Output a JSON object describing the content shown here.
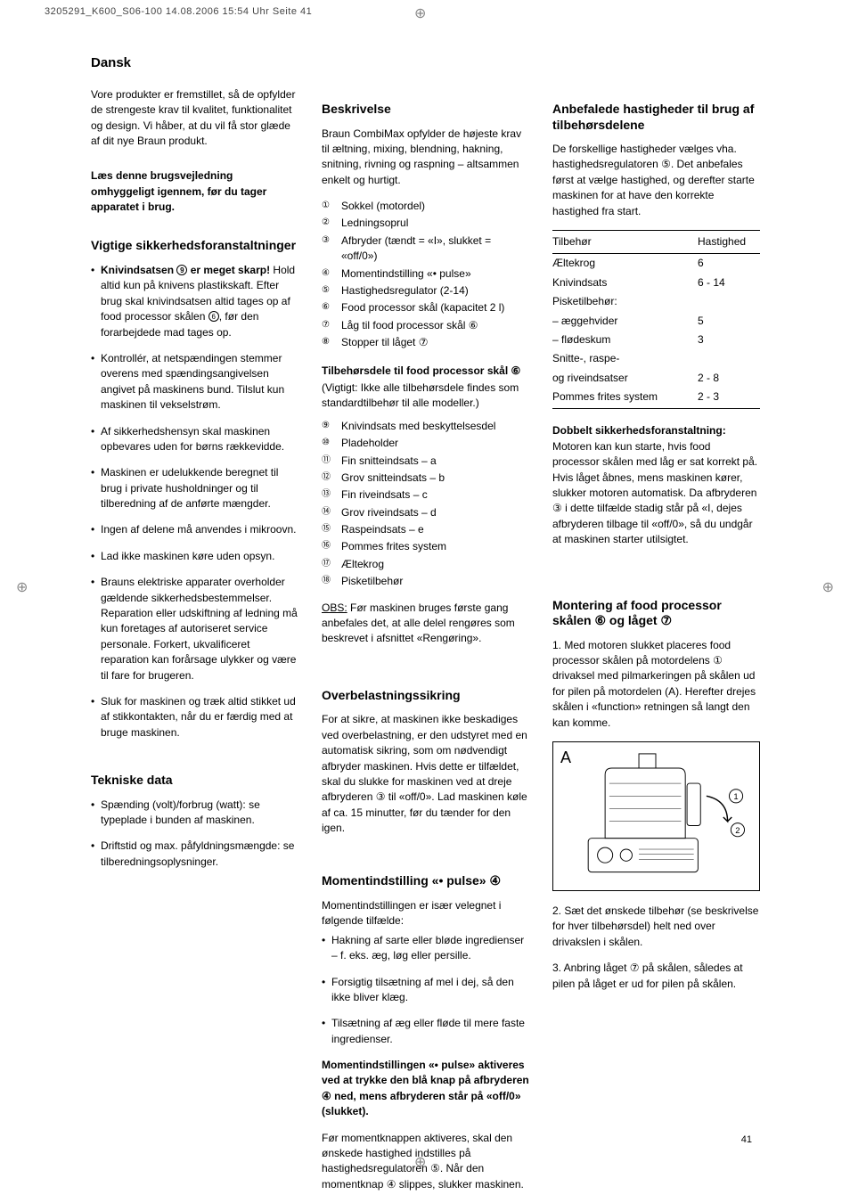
{
  "print_header": "3205291_K600_S06-100  14.08.2006  15:54 Uhr  Seite 41",
  "page_number": "41",
  "lang_title": "Dansk",
  "col1": {
    "intro": "Vore produkter er fremstillet, så de opfylder de strengeste krav til kvalitet, funktionalitet og design. Vi håber, at du vil få stor glæde af dit nye Braun produkt.",
    "read_notice": "Læs denne brugsvejledning omhyggeligt igennem, før du tager apparatet i brug.",
    "safety_title": "Vigtige sikkerhedsforanstaltninger",
    "safety_items": [
      "<b>Knivindsatsen <span class='circnum'>9</span> er meget skarp!</b> Hold altid kun på knivens plastikskaft. Efter brug skal knivindsatsen altid tages op af food processor skålen <span class='circnum'>6</span>, før den forarbejdede mad tages op.",
      "Kontrollér, at netspændingen stemmer overens med spændingsangivelsen angivet på maskinens bund. Tilslut kun maskinen til vekselstrøm.",
      "Af sikkerhedshensyn skal maskinen opbevares uden for børns rækkevidde.",
      "Maskinen er udelukkende beregnet til brug i private husholdninger og til tilberedning af de anførte mængder.",
      "Ingen af delene må anvendes i mikroovn.",
      "Lad ikke maskinen køre uden opsyn.",
      "Brauns elektriske apparater overholder gældende sikkerhedsbestemmelser. Reparation eller udskiftning af ledning må kun foretages af autoriseret service personale. Forkert, ukvalificeret reparation kan forårsage ulykker og være til fare for brugeren.",
      "Sluk for maskinen og træk altid stikket ud af stikkontakten, når du er færdig med at bruge maskinen."
    ],
    "tech_title": "Tekniske data",
    "tech_items": [
      "Spænding (volt)/forbrug (watt): se typeplade i bunden af maskinen.",
      "Driftstid og max. påfyldningsmængde: se tilberedningsoplysninger."
    ]
  },
  "col2": {
    "desc_title": "Beskrivelse",
    "desc_intro": "Braun CombiMax opfylder de højeste krav til æltning, mixing, blendning, hakning, snitning, rivning og raspning – altsammen enkelt og hurtigt.",
    "parts": [
      {
        "n": "①",
        "t": "Sokkel (motordel)"
      },
      {
        "n": "②",
        "t": "Ledningsoprul"
      },
      {
        "n": "③",
        "t": "Afbryder (tændt = «I», slukket = «off/0»)"
      },
      {
        "n": "④",
        "t": "Momentindstilling «• pulse»"
      },
      {
        "n": "⑤",
        "t": "Hastighedsregulator (2-14)"
      },
      {
        "n": "⑥",
        "t": "Food processor skål (kapacitet 2 l)"
      },
      {
        "n": "⑦",
        "t": "Låg til food processor skål ⑥"
      },
      {
        "n": "⑧",
        "t": "Stopper til låget ⑦"
      }
    ],
    "acc_title": "Tilbehørsdele til food processor skål ⑥",
    "acc_note": "(Vigtigt: Ikke alle tilbehørsdele findes som standardtilbehør til alle modeller.)",
    "acc_list": [
      {
        "n": "⑨",
        "t": "Knivindsats med beskyttelsesdel"
      },
      {
        "n": "⑩",
        "t": "Pladeholder"
      },
      {
        "n": "⑪",
        "t": "Fin snitteindsats – a"
      },
      {
        "n": "⑫",
        "t": "Grov snitteindsats – b"
      },
      {
        "n": "⑬",
        "t": "Fin riveindsats – c"
      },
      {
        "n": "⑭",
        "t": "Grov riveindsats – d"
      },
      {
        "n": "⑮",
        "t": "Raspeindsats – e"
      },
      {
        "n": "⑯",
        "t": "Pommes frites system"
      },
      {
        "n": "⑰",
        "t": "Æltekrog"
      },
      {
        "n": "⑱",
        "t": "Pisketilbehør"
      }
    ],
    "obs_label": "OBS:",
    "obs_text": " Før maskinen bruges første gang anbefales det, at alle delel rengøres som beskrevet i afsnittet «Rengøring».",
    "overload_title": "Overbelastningssikring",
    "overload_text": "For at sikre, at maskinen ikke beskadiges ved overbelastning, er den udstyret med en automatisk sikring, som om nødvendigt afbryder maskinen. Hvis dette er tilfældet, skal du slukke for maskinen ved at dreje afbryderen ③ til «off/0». Lad maskinen køle af ca. 15 minutter, før du tænder for den igen.",
    "pulse_title": "Momentindstilling «• pulse» ④",
    "pulse_intro": "Momentindstillingen er især velegnet i følgende tilfælde:",
    "pulse_items": [
      "Hakning af sarte eller bløde ingredienser – f. eks. æg, løg eller persille.",
      "Forsigtig tilsætning af mel i dej, så den ikke bliver klæg.",
      "Tilsætning af æg eller fløde til mere faste ingredienser."
    ],
    "pulse_bold": "Momentindstillingen «• pulse» aktiveres ved at trykke den blå knap på afbryderen ④ ned, mens afbryderen står på «off/0» (slukket).",
    "pulse_after": "Før momentknappen aktiveres, skal den ønskede hastighed indstilles på hastighedsregulatoren ⑤. Når den momentknap ④ slippes, slukker maskinen."
  },
  "col3": {
    "speed_title": "Anbefalede hastigheder til brug af tilbehørsdelene",
    "speed_intro": "De forskellige hastigheder vælges vha. hastighedsregulatoren ⑤. Det anbefales først at vælge hastighed, og derefter starte maskinen for at have den korrekte hastighed fra start.",
    "table_head": {
      "c1": "Tilbehør",
      "c2": "Hastighed"
    },
    "table_rows": [
      {
        "c1": "Æltekrog",
        "c2": "6"
      },
      {
        "c1": "Knivindsats",
        "c2": "6 - 14"
      },
      {
        "c1": "Pisketilbehør:",
        "c2": ""
      },
      {
        "c1": "– æggehvider",
        "c2": "5"
      },
      {
        "c1": "– flødeskum",
        "c2": "3"
      },
      {
        "c1": "Snitte-, raspe-",
        "c2": ""
      },
      {
        "c1": "og riveindsatser",
        "c2": "2 - 8"
      },
      {
        "c1": "Pommes frites system",
        "c2": "2 - 3"
      }
    ],
    "double_title": "Dobbelt sikkerhedsforanstaltning:",
    "double_text": "Motoren kan kun starte, hvis food processor skålen med låg er sat korrekt på. Hvis låget åbnes, mens maskinen kører, slukker motoren automatisk. Da afbryderen ③ i dette tilfælde stadig står på «I, dejes afbryderen tilbage til «off/0», så du undgår at maskinen starter utilsigtet.",
    "mount_title": "Montering af food processor skålen ⑥ og låget ⑦",
    "mount_1": "1. Med motoren slukket placeres food processor skålen på motordelens ① drivaksel  med pilmarkeringen på skålen ud for pilen på motordelen (A). Herefter drejes skålen i «function» retningen så langt den kan komme.",
    "fig_label": "A",
    "mount_2": "2. Sæt det ønskede tilbehør (se beskrivelse for hver tilbehørsdel) helt ned over drivakslen i skålen.",
    "mount_3": "3. Anbring låget ⑦ på skålen, således at pilen på låget er ud for pilen på skålen."
  }
}
